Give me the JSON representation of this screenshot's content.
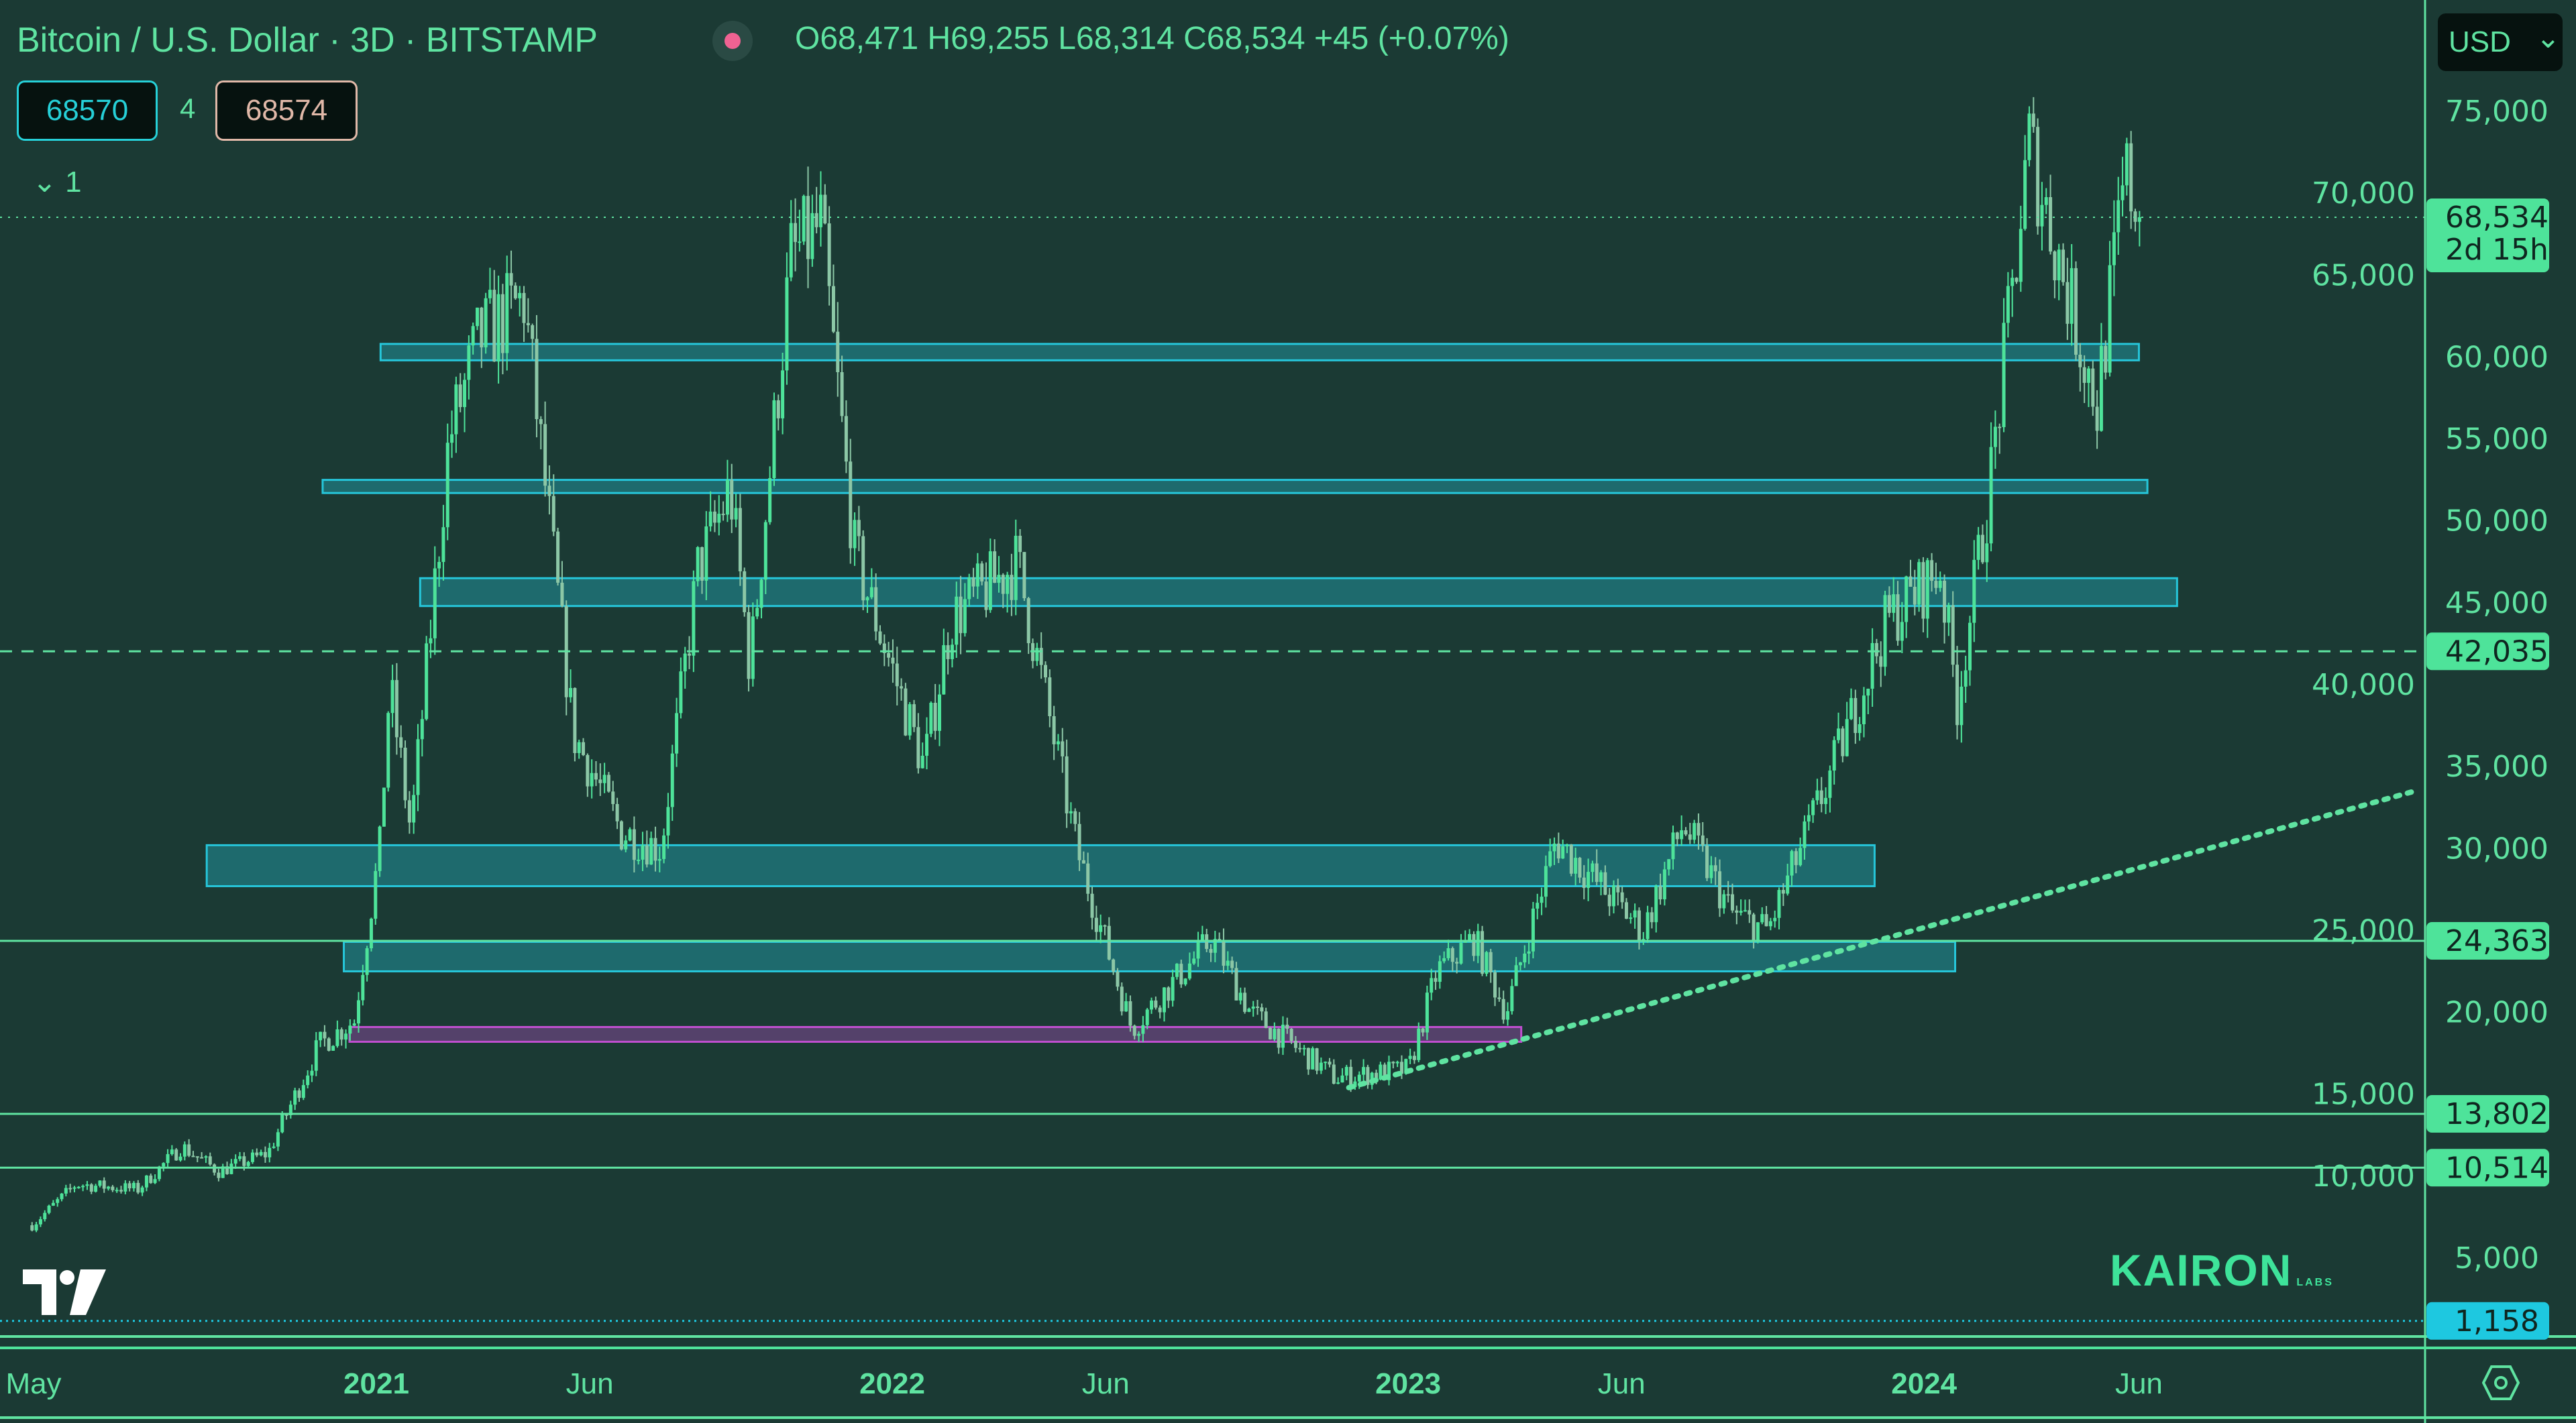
{
  "header": {
    "title": "Bitcoin / U.S. Dollar · 3D · BITSTAMP",
    "ohlc": "O68,471 H69,255 L68,314 C68,534 +45 (+0.07%)",
    "bid": "68570",
    "spread": "4",
    "ask": "68574",
    "indicator_collapse": "1",
    "currency": "USD"
  },
  "branding": {
    "tv_logo": "TV",
    "kairon": "KAIRON",
    "kairon_sub": "LABS"
  },
  "colors": {
    "background": "#1b3a34",
    "candle_up": "#4ee39a",
    "candle_down": "#8cc7a6",
    "zone": "#26c6da",
    "zone_purple": "#c04fd0",
    "line": "#5fe3a1",
    "tag_cyan": "#1ec8e0"
  },
  "chart_data": {
    "type": "candlestick",
    "interval": "3D",
    "symbol": "BTCUSD",
    "exchange": "BITSTAMP",
    "xlim": [
      "2020-04-28",
      "2024-12-20"
    ],
    "ylim": [
      0,
      78000
    ],
    "x_ticks": [
      {
        "date": "2020-05-01",
        "label": "May"
      },
      {
        "date": "2021-01-01",
        "label": "2021"
      },
      {
        "date": "2021-06-01",
        "label": "Jun"
      },
      {
        "date": "2022-01-01",
        "label": "2022"
      },
      {
        "date": "2022-06-01",
        "label": "Jun"
      },
      {
        "date": "2023-01-01",
        "label": "2023"
      },
      {
        "date": "2023-06-01",
        "label": "Jun"
      },
      {
        "date": "2024-01-01",
        "label": "2024"
      },
      {
        "date": "2024-06-01",
        "label": "Jun"
      }
    ],
    "y_ticks": [
      "75,000",
      "70,000",
      "65,000",
      "60,000",
      "55,000",
      "50,000",
      "45,000",
      "40,000",
      "35,000",
      "30,000",
      "25,000",
      "20,000",
      "15,000",
      "10,000",
      "5,000"
    ],
    "close_path": [
      [
        "2020-05-01",
        7000
      ],
      [
        "2020-06-01",
        9500
      ],
      [
        "2020-07-15",
        9200
      ],
      [
        "2020-08-15",
        11800
      ],
      [
        "2020-09-10",
        10300
      ],
      [
        "2020-10-15",
        11400
      ],
      [
        "2020-11-20",
        18000
      ],
      [
        "2020-12-15",
        19500
      ],
      [
        "2021-01-02",
        30000
      ],
      [
        "2021-01-09",
        40000
      ],
      [
        "2021-01-24",
        31000
      ],
      [
        "2021-02-20",
        55000
      ],
      [
        "2021-03-13",
        61000
      ],
      [
        "2021-04-14",
        63500
      ],
      [
        "2021-05-19",
        37000
      ],
      [
        "2021-06-22",
        31000
      ],
      [
        "2021-07-20",
        30000
      ],
      [
        "2021-08-15",
        47000
      ],
      [
        "2021-09-07",
        52000
      ],
      [
        "2021-09-21",
        41000
      ],
      [
        "2021-10-20",
        66000
      ],
      [
        "2021-11-10",
        68000
      ],
      [
        "2021-12-04",
        48000
      ],
      [
        "2022-01-22",
        35000
      ],
      [
        "2022-02-10",
        44000
      ],
      [
        "2022-03-29",
        47500
      ],
      [
        "2022-05-10",
        30000
      ],
      [
        "2022-06-18",
        19000
      ],
      [
        "2022-08-14",
        24500
      ],
      [
        "2022-09-10",
        20000
      ],
      [
        "2022-11-09",
        16000
      ],
      [
        "2022-12-31",
        16500
      ],
      [
        "2023-01-20",
        22500
      ],
      [
        "2023-02-15",
        24500
      ],
      [
        "2023-03-10",
        20000
      ],
      [
        "2023-04-14",
        30500
      ],
      [
        "2023-06-15",
        25000
      ],
      [
        "2023-07-13",
        31500
      ],
      [
        "2023-08-17",
        26000
      ],
      [
        "2023-09-11",
        25000
      ],
      [
        "2023-10-23",
        34000
      ],
      [
        "2023-12-05",
        44000
      ],
      [
        "2024-01-11",
        47000
      ],
      [
        "2024-01-23",
        39000
      ],
      [
        "2024-02-15",
        52000
      ],
      [
        "2024-03-14",
        73000
      ],
      [
        "2024-05-01",
        57000
      ],
      [
        "2024-05-21",
        71000
      ],
      [
        "2024-06-02",
        68534
      ]
    ],
    "last_price": {
      "value": "68,534",
      "countdown": "2d 15h",
      "price": 68534
    },
    "levels": [
      {
        "label": "42,035",
        "price": 42035,
        "style": "dashed"
      },
      {
        "label": "24,363",
        "price": 24363,
        "style": "solid"
      },
      {
        "label": "13,802",
        "price": 13802,
        "style": "solid"
      },
      {
        "label": "10,514",
        "price": 10514,
        "style": "solid"
      },
      {
        "label": "1,158",
        "price": 1158,
        "style": "dotted",
        "color": "cyan"
      }
    ],
    "zones": [
      {
        "from": "2021-01-04",
        "to": "2024-06-01",
        "low": 59800,
        "high": 60800,
        "color": "cyan"
      },
      {
        "from": "2020-11-24",
        "to": "2024-06-07",
        "low": 51700,
        "high": 52500,
        "color": "cyan"
      },
      {
        "from": "2021-02-01",
        "to": "2024-06-28",
        "low": 44800,
        "high": 46500,
        "color": "cyan"
      },
      {
        "from": "2020-09-03",
        "to": "2023-11-27",
        "low": 27700,
        "high": 30200,
        "color": "cyan"
      },
      {
        "from": "2020-12-09",
        "to": "2024-01-23",
        "low": 22500,
        "high": 24300,
        "color": "cyan"
      },
      {
        "from": "2020-12-13",
        "to": "2023-03-22",
        "low": 18200,
        "high": 19100,
        "color": "purple"
      }
    ],
    "trendline": {
      "from": [
        "2022-11-20",
        15400
      ],
      "to": [
        "2024-12-13",
        33500
      ],
      "style": "dotted"
    }
  }
}
